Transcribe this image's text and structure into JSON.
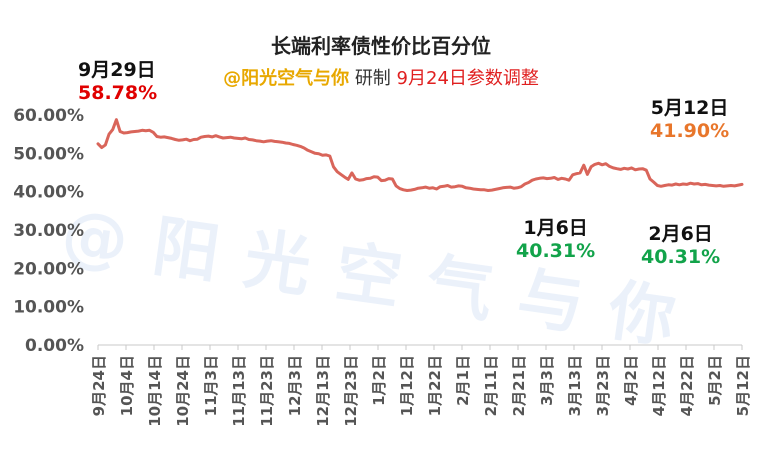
{
  "chart_data": {
    "type": "line",
    "title": "长端利率债性价比百分位",
    "subtitle": {
      "handle": "@阳光空气与你",
      "made": "研制",
      "note": "9月24日参数调整"
    },
    "watermark": "@阳光空气与你",
    "y_ticks": [
      "60.00%",
      "50.00%",
      "40.00%",
      "30.00%",
      "20.00%",
      "10.00%",
      "0.00%"
    ],
    "ylim": [
      0,
      60
    ],
    "x_ticks": [
      "9月24日",
      "10月4日",
      "10月14日",
      "10月24日",
      "11月3日",
      "11月13日",
      "11月23日",
      "12月3日",
      "12月13日",
      "12月23日",
      "1月2日",
      "1月12日",
      "1月22日",
      "2月1日",
      "2月11日",
      "2月21日",
      "3月3日",
      "3月13日",
      "3月23日",
      "4月2日",
      "4月12日",
      "4月22日",
      "5月2日",
      "5月12日"
    ],
    "series": [
      {
        "color": "#d9655a",
        "values": [
          52.5,
          51.5,
          52.2,
          55.0,
          56.2,
          58.78,
          55.7,
          55.3,
          55.4,
          55.6,
          55.7,
          55.8,
          56.0,
          55.9,
          56.0,
          55.5,
          54.4,
          54.2,
          54.3,
          54.1,
          53.9,
          53.6,
          53.4,
          53.5,
          53.7,
          53.3,
          53.6,
          53.7,
          54.2,
          54.4,
          54.5,
          54.3,
          54.6,
          54.3,
          54.0,
          54.1,
          54.2,
          54.0,
          53.9,
          53.8,
          54.0,
          53.6,
          53.5,
          53.3,
          53.2,
          53.0,
          53.2,
          53.3,
          53.1,
          53.0,
          52.9,
          52.7,
          52.6,
          52.3,
          52.1,
          51.8,
          51.4,
          50.8,
          50.4,
          50.0,
          49.9,
          49.5,
          49.6,
          49.3,
          46.5,
          45.2,
          44.5,
          43.8,
          43.2,
          44.9,
          43.3,
          43.0,
          43.1,
          43.4,
          43.5,
          43.9,
          43.8,
          42.9,
          43.0,
          43.4,
          43.3,
          41.5,
          40.8,
          40.5,
          40.31,
          40.4,
          40.6,
          40.9,
          41.0,
          41.2,
          40.9,
          41.0,
          40.7,
          41.3,
          41.4,
          41.6,
          41.2,
          41.3,
          41.5,
          41.4,
          41.0,
          40.9,
          40.7,
          40.6,
          40.5,
          40.5,
          40.31,
          40.4,
          40.6,
          40.8,
          41.0,
          41.1,
          41.2,
          40.9,
          41.0,
          41.3,
          42.0,
          42.4,
          43.0,
          43.3,
          43.5,
          43.6,
          43.4,
          43.5,
          43.7,
          43.2,
          43.5,
          43.3,
          43.0,
          44.4,
          44.7,
          44.9,
          46.9,
          44.5,
          46.5,
          47.1,
          47.4,
          47.0,
          47.3,
          46.6,
          46.2,
          46.0,
          45.8,
          46.1,
          45.9,
          46.2,
          45.7,
          45.9,
          46.0,
          45.6,
          43.3,
          42.5,
          41.6,
          41.4,
          41.6,
          41.8,
          41.7,
          42.0,
          41.8,
          42.0,
          41.9,
          42.2,
          42.0,
          42.1,
          41.8,
          41.9,
          41.7,
          41.6,
          41.5,
          41.6,
          41.4,
          41.5,
          41.6,
          41.5,
          41.7,
          41.9
        ]
      }
    ],
    "annotations": [
      {
        "date": "9月29日",
        "value": "58.78%",
        "color": "red"
      },
      {
        "date": "5月12日",
        "value": "41.90%",
        "color": "orange"
      },
      {
        "date": "1月6日",
        "value": "40.31%",
        "color": "green"
      },
      {
        "date": "2月6日",
        "value": "40.31%",
        "color": "green"
      }
    ]
  }
}
